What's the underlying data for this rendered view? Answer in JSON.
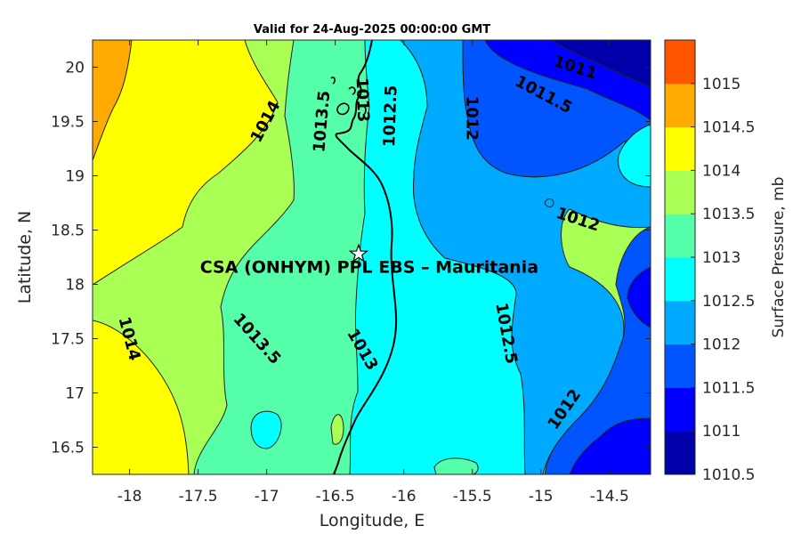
{
  "chart_data": {
    "type": "heatmap",
    "title": "Valid for 24-Aug-2025 00:00:00 GMT",
    "xlabel": "Longitude, E",
    "ylabel": "Latitude, N",
    "xlim": [
      -18.27,
      -14.2
    ],
    "ylim": [
      16.25,
      20.25
    ],
    "x_ticks": [
      -18,
      -17.5,
      -17,
      -16.5,
      -16,
      -15.5,
      -15,
      -14.5
    ],
    "y_ticks": [
      16.5,
      17,
      17.5,
      18,
      18.5,
      19,
      19.5,
      20
    ],
    "colorbar": {
      "label": "Surface Pressure, mb",
      "ticks": [
        1010.5,
        1011,
        1011.5,
        1012,
        1012.5,
        1013,
        1013.5,
        1014,
        1014.5,
        1015
      ],
      "colors": [
        "#0000aa",
        "#0000ff",
        "#0055ff",
        "#00aaff",
        "#00ffff",
        "#55ffaa",
        "#aaff55",
        "#ffff00",
        "#ffaa00",
        "#ff5500"
      ]
    },
    "contour_labels": [
      {
        "text": "1014",
        "lon": -17.01,
        "lat": 19.5,
        "rotate": -62
      },
      {
        "text": "1013.5",
        "lon": -16.6,
        "lat": 19.5,
        "rotate": -85
      },
      {
        "text": "1013",
        "lon": -16.3,
        "lat": 19.7,
        "rotate": 88
      },
      {
        "text": "1012.5",
        "lon": -16.1,
        "lat": 19.55,
        "rotate": -88
      },
      {
        "text": "1012",
        "lon": -15.5,
        "lat": 19.53,
        "rotate": 90
      },
      {
        "text": "1011.5",
        "lon": -14.98,
        "lat": 19.75,
        "rotate": 28
      },
      {
        "text": "1011",
        "lon": -14.75,
        "lat": 20.0,
        "rotate": 18
      },
      {
        "text": "1012",
        "lon": -14.73,
        "lat": 18.6,
        "rotate": 18
      },
      {
        "text": "1014",
        "lon": -18.0,
        "lat": 17.5,
        "rotate": 75
      },
      {
        "text": "1013.5",
        "lon": -17.07,
        "lat": 17.5,
        "rotate": 48
      },
      {
        "text": "1013",
        "lon": -16.3,
        "lat": 17.4,
        "rotate": 60
      },
      {
        "text": "1012.5",
        "lon": -15.25,
        "lat": 17.55,
        "rotate": 80
      },
      {
        "text": "1012",
        "lon": -14.83,
        "lat": 16.85,
        "rotate": -55
      }
    ],
    "station": {
      "name": "CSA (ONHYM) PPL EBS  – Mauritania",
      "lon": -16.33,
      "lat": 18.28
    }
  }
}
